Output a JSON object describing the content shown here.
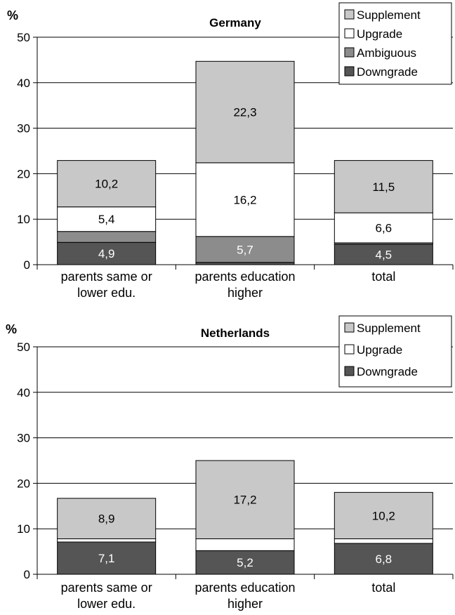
{
  "chart_data": [
    {
      "type": "bar",
      "stacked": true,
      "title": "Germany",
      "ylabel": "%",
      "ylim": [
        0,
        50
      ],
      "yticks": [
        0,
        10,
        20,
        30,
        40,
        50
      ],
      "grid": true,
      "legend_position": "top-right",
      "categories": [
        [
          "parents same or",
          "lower edu."
        ],
        [
          "parents education",
          "higher"
        ],
        [
          "total"
        ]
      ],
      "series": [
        {
          "name": "Downgrade",
          "color": "#555555",
          "label_color": "#ffffff",
          "values": [
            4.9,
            0.5,
            4.5
          ],
          "labels": [
            "4,9",
            "",
            "4,5"
          ]
        },
        {
          "name": "Ambiguous",
          "color": "#8c8c8c",
          "label_color": "#ffffff",
          "values": [
            2.4,
            5.7,
            0.3
          ],
          "labels": [
            "",
            "5,7",
            ""
          ]
        },
        {
          "name": "Upgrade",
          "color": "#ffffff",
          "label_color": "#000000",
          "values": [
            5.4,
            16.2,
            6.6
          ],
          "labels": [
            "5,4",
            "16,2",
            "6,6"
          ]
        },
        {
          "name": "Supplement",
          "color": "#c8c8c8",
          "label_color": "#000000",
          "values": [
            10.2,
            22.3,
            11.5
          ],
          "labels": [
            "10,2",
            "22,3",
            "11,5"
          ]
        }
      ]
    },
    {
      "type": "bar",
      "stacked": true,
      "title": "Netherlands",
      "ylabel": "%",
      "ylim": [
        0,
        50
      ],
      "yticks": [
        0,
        10,
        20,
        30,
        40,
        50
      ],
      "grid": true,
      "legend_position": "top-right",
      "categories": [
        [
          "parents same or",
          "lower edu."
        ],
        [
          "parents education",
          "higher"
        ],
        [
          "total"
        ]
      ],
      "series": [
        {
          "name": "Downgrade",
          "color": "#555555",
          "label_color": "#ffffff",
          "values": [
            7.1,
            5.2,
            6.8
          ],
          "labels": [
            "7,1",
            "5,2",
            "6,8"
          ]
        },
        {
          "name": "Upgrade",
          "color": "#ffffff",
          "label_color": "#000000",
          "values": [
            0.7,
            2.6,
            1.0
          ],
          "labels": [
            "",
            "",
            ""
          ]
        },
        {
          "name": "Supplement",
          "color": "#c8c8c8",
          "label_color": "#000000",
          "values": [
            8.9,
            17.2,
            10.2
          ],
          "labels": [
            "8,9",
            "17,2",
            "10,2"
          ]
        }
      ]
    }
  ]
}
